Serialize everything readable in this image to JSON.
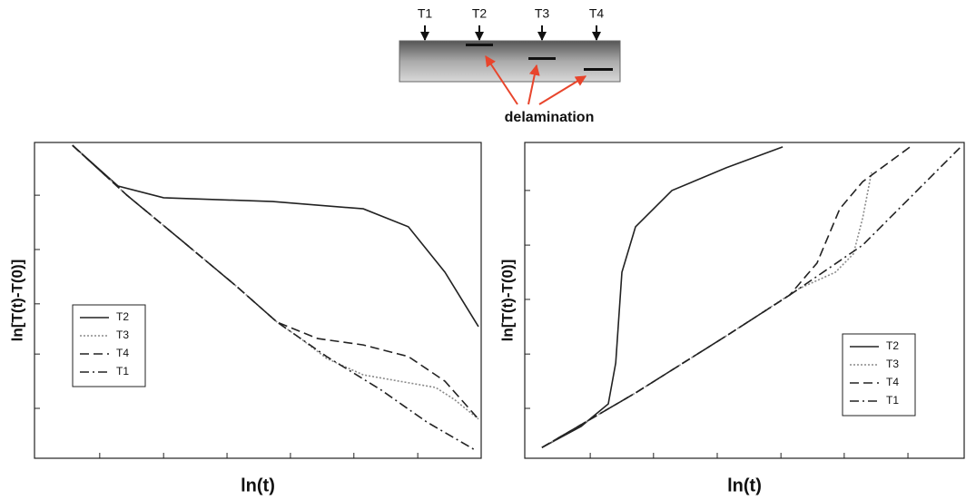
{
  "diagram": {
    "probes": [
      "T1",
      "T2",
      "T3",
      "T4"
    ],
    "label": "delamination"
  },
  "chart_data": [
    {
      "type": "line",
      "xlabel": "ln(t)",
      "ylabel": "ln[T(t)-T(0)]",
      "xlim": [
        0,
        10
      ],
      "ylim": [
        0,
        10
      ],
      "xticks": [
        1.46,
        2.89,
        4.31,
        5.73,
        7.15,
        8.58
      ],
      "yticks": [
        1.58,
        3.3,
        4.89,
        6.61,
        8.33
      ],
      "legend": "center left",
      "series": [
        {
          "name": "T2",
          "color": "#222222",
          "style": "solid",
          "x": [
            0.85,
            1.87,
            2.89,
            5.33,
            7.36,
            8.37,
            9.19,
            9.94
          ],
          "values": [
            9.91,
            8.62,
            8.25,
            8.13,
            7.9,
            7.33,
            5.89,
            4.17
          ]
        },
        {
          "name": "T3",
          "color": "#8a8a8a",
          "style": "dotted",
          "x": [
            0.85,
            2.07,
            3.29,
            4.51,
            5.43,
            5.93,
            6.54,
            7.36,
            8.17,
            8.98,
            9.39,
            9.94
          ],
          "values": [
            9.91,
            8.33,
            6.9,
            5.46,
            4.31,
            3.82,
            3.16,
            2.64,
            2.44,
            2.24,
            1.87,
            1.24
          ]
        },
        {
          "name": "T4",
          "color": "#222222",
          "style": "dashed",
          "x": [
            0.85,
            2.07,
            3.29,
            4.51,
            5.43,
            6.34,
            7.36,
            8.37,
            9.19,
            9.94
          ],
          "values": [
            9.91,
            8.33,
            6.9,
            5.46,
            4.31,
            3.79,
            3.59,
            3.22,
            2.44,
            1.24
          ]
        },
        {
          "name": "T1",
          "color": "#222222",
          "style": "dashdot",
          "x": [
            0.85,
            2.07,
            3.29,
            4.51,
            5.43,
            6.54,
            7.76,
            8.78,
            9.9
          ],
          "values": [
            9.91,
            8.33,
            6.9,
            5.46,
            4.31,
            3.22,
            2.16,
            1.15,
            0.23
          ]
        }
      ]
    },
    {
      "type": "line",
      "xlabel": "ln(t)",
      "ylabel": "ln[T(t)-T(0)]",
      "xlim": [
        0,
        10
      ],
      "ylim": [
        0,
        10
      ],
      "xticks": [
        1.49,
        2.93,
        4.38,
        5.83,
        7.27,
        8.72
      ],
      "yticks": [
        1.58,
        3.3,
        5.03,
        6.75,
        8.48
      ],
      "legend": "lower right",
      "series": [
        {
          "name": "T2",
          "color": "#222222",
          "style": "solid",
          "x": [
            0.39,
            1.28,
            1.9,
            2.07,
            2.21,
            2.52,
            3.35,
            4.59,
            5.87
          ],
          "values": [
            0.34,
            1.01,
            1.72,
            3.02,
            5.89,
            7.33,
            8.48,
            9.2,
            9.86
          ]
        },
        {
          "name": "T3",
          "color": "#8a8a8a",
          "style": "dotted",
          "x": [
            0.39,
            2.52,
            4.59,
            6.24,
            7.07,
            7.48,
            7.69,
            7.89
          ],
          "values": [
            0.34,
            2.07,
            3.88,
            5.37,
            5.89,
            6.47,
            7.61,
            9.05
          ]
        },
        {
          "name": "T4",
          "color": "#222222",
          "style": "dashed",
          "x": [
            0.39,
            2.52,
            4.59,
            6.03,
            6.65,
            7.17,
            7.69,
            8.82
          ],
          "values": [
            0.34,
            2.07,
            3.88,
            5.17,
            6.18,
            7.9,
            8.76,
            9.91
          ]
        },
        {
          "name": "T1",
          "color": "#222222",
          "style": "dashdot",
          "x": [
            0.39,
            2.52,
            4.59,
            6.03,
            7.69,
            9.9
          ],
          "values": [
            0.34,
            2.07,
            3.88,
            5.17,
            6.75,
            9.83
          ]
        }
      ]
    }
  ]
}
